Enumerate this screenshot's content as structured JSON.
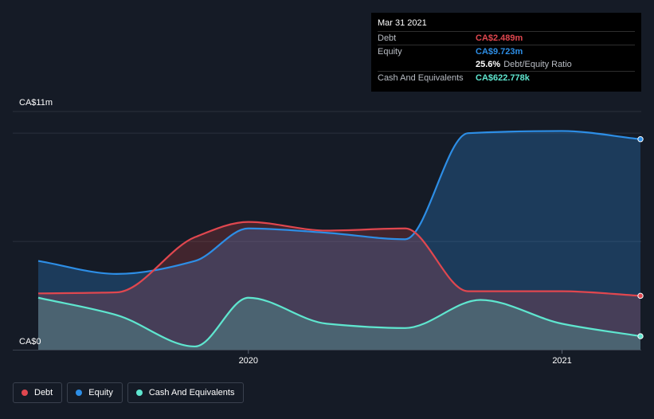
{
  "chart_data": {
    "type": "area",
    "y_unit_label": "CA$11m",
    "y_zero_label": "CA$0",
    "ylim": [
      0,
      11
    ],
    "x_range": [
      2019.33,
      2021.25
    ],
    "x_ticks": [
      {
        "value": 2020.0,
        "label": "2020"
      },
      {
        "value": 2021.0,
        "label": "2021"
      }
    ],
    "series": [
      {
        "name": "Debt",
        "color": "#e0474f",
        "x": [
          2019.33,
          2019.58,
          2019.83,
          2020.0,
          2020.25,
          2020.5,
          2020.7,
          2021.0,
          2021.25
        ],
        "values": [
          2.6,
          2.65,
          5.2,
          5.9,
          5.5,
          5.6,
          2.7,
          2.7,
          2.489
        ]
      },
      {
        "name": "Equity",
        "color": "#2d8ee6",
        "x": [
          2019.33,
          2019.58,
          2019.83,
          2020.0,
          2020.25,
          2020.5,
          2020.7,
          2021.0,
          2021.25
        ],
        "values": [
          4.1,
          3.5,
          4.1,
          5.6,
          5.4,
          5.1,
          10.0,
          10.1,
          9.723
        ]
      },
      {
        "name": "Cash And Equivalents",
        "color": "#5fe6cf",
        "x": [
          2019.33,
          2019.58,
          2019.83,
          2020.0,
          2020.25,
          2020.5,
          2020.74,
          2021.0,
          2021.25
        ],
        "values": [
          2.4,
          1.6,
          0.15,
          2.4,
          1.2,
          1.0,
          2.3,
          1.2,
          0.623
        ]
      }
    ]
  },
  "tooltip": {
    "date": "Mar 31 2021",
    "debt_label": "Debt",
    "debt_value": "CA$2.489m",
    "equity_label": "Equity",
    "equity_value": "CA$9.723m",
    "ratio_value": "25.6%",
    "ratio_label": "Debt/Equity Ratio",
    "cash_label": "Cash And Equivalents",
    "cash_value": "CA$622.778k"
  },
  "legend": [
    {
      "label": "Debt",
      "color": "#e0474f"
    },
    {
      "label": "Equity",
      "color": "#2d8ee6"
    },
    {
      "label": "Cash And Equivalents",
      "color": "#5fe6cf"
    }
  ]
}
